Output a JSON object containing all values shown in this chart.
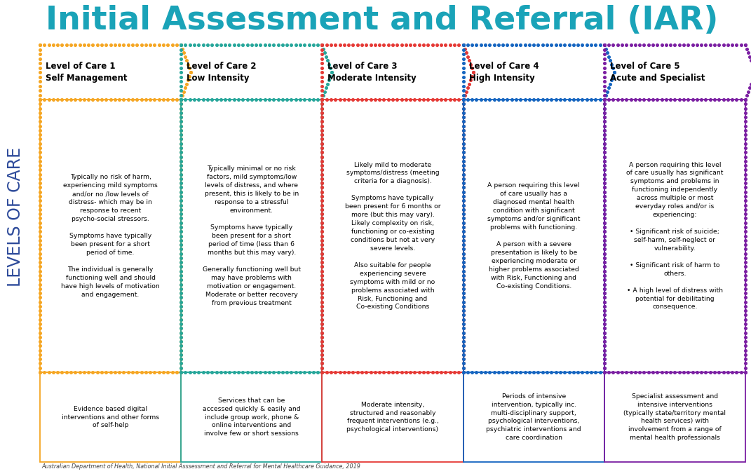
{
  "title": "Initial Assessment and Referral (IAR)",
  "title_color": "#1aa3b8",
  "sidebar_text": "LEVELS OF CARE",
  "sidebar_color": "#2d4a9a",
  "footer": "Australian Department of Health, National Initial Asssessment and Referral for Mental Healthcare Guidance, 2019",
  "levels": [
    {
      "dot_color": "#f5a623",
      "header_line1": "Level of Care 1",
      "header_line2": "Self Management",
      "body_text": "Typically no risk of harm,\nexperiencing mild symptoms\nand/or no /low levels of\ndistress- which may be in\nresponse to recent\npsycho-social stressors.\n\nSymptoms have typically\nbeen present for a short\nperiod of time.\n\nThe individual is generally\nfunctioning well and should\nhave high levels of motivation\nand engagement.",
      "bottom_text": "Evidence based digital\ninterventions and other forms\nof self-help"
    },
    {
      "dot_color": "#26a69a",
      "header_line1": "Level of Care 2",
      "header_line2": "Low Intensity",
      "body_text": "Typically minimal or no risk\nfactors, mild symptoms/low\nlevels of distress, and where\npresent, this is likely to be in\nresponse to a stressful\nenvironment.\n\nSymptoms have typically\nbeen present for a short\nperiod of time (less than 6\nmonths but this may vary).\n\nGenerally functioning well but\nmay have problems with\nmotivation or engagement.\nModerate or better recovery\nfrom previous treatment",
      "bottom_text": "Services that can be\naccessed quickly & easily and\ninclude group work, phone &\nonline interventions and\ninvolve few or short sessions"
    },
    {
      "dot_color": "#e53935",
      "header_line1": "Level of Care 3",
      "header_line2": "Moderate Intensity",
      "body_text": "Likely mild to moderate\nsymptoms/distress (meeting\ncriteria for a diagnosis).\n\nSymptoms have typically\nbeen present for 6 months or\nmore (but this may vary).\nLikely complexity on risk,\nfunctioning or co-existing\nconditions but not at very\nsevere levels.\n\nAlso suitable for people\nexperiencing severe\nsymptoms with mild or no\nproblems associated with\nRisk, Functioning and\nCo-existing Conditions",
      "bottom_text": "Moderate intensity,\nstructured and reasonably\nfrequent interventions (e.g.,\npsychological interventions)"
    },
    {
      "dot_color": "#1565c0",
      "header_line1": "Level of Care 4",
      "header_line2": "High Intensity",
      "body_text": "A person requiring this level\nof care usually has a\ndiagnosed mental health\ncondition with significant\nsymptoms and/or significant\nproblems with functioning.\n\nA person with a severe\npresentation is likely to be\nexperiencing moderate or\nhigher problems associated\nwith Risk, Functioning and\nCo-existing Conditions.",
      "bottom_text": "Periods of intensive\nintervention, typically inc.\nmulti-disciplinary support,\npsychological interventions,\npsychiatric interventions and\ncare coordination"
    },
    {
      "dot_color": "#7b1fa2",
      "header_line1": "Level of Care 5",
      "header_line2": "Acute and Specialist",
      "body_text": "A person requiring this level\nof care usually has significant\nsymptoms and problems in\nfunctioning independently\nacross multiple or most\neveryday roles and/or is\nexperiencing:\n\n• Significant risk of suicide;\nself-harm, self-neglect or\nvulnerability.\n\n• Significant risk of harm to\nothers.\n\n• A high level of distress with\npotential for debilitating\nconsequence.",
      "bottom_text": "Specialist assessment and\nintensive interventions\n(typically state/territory mental\nhealth services) with\ninvolvement from a range of\nmental health professionals"
    }
  ]
}
